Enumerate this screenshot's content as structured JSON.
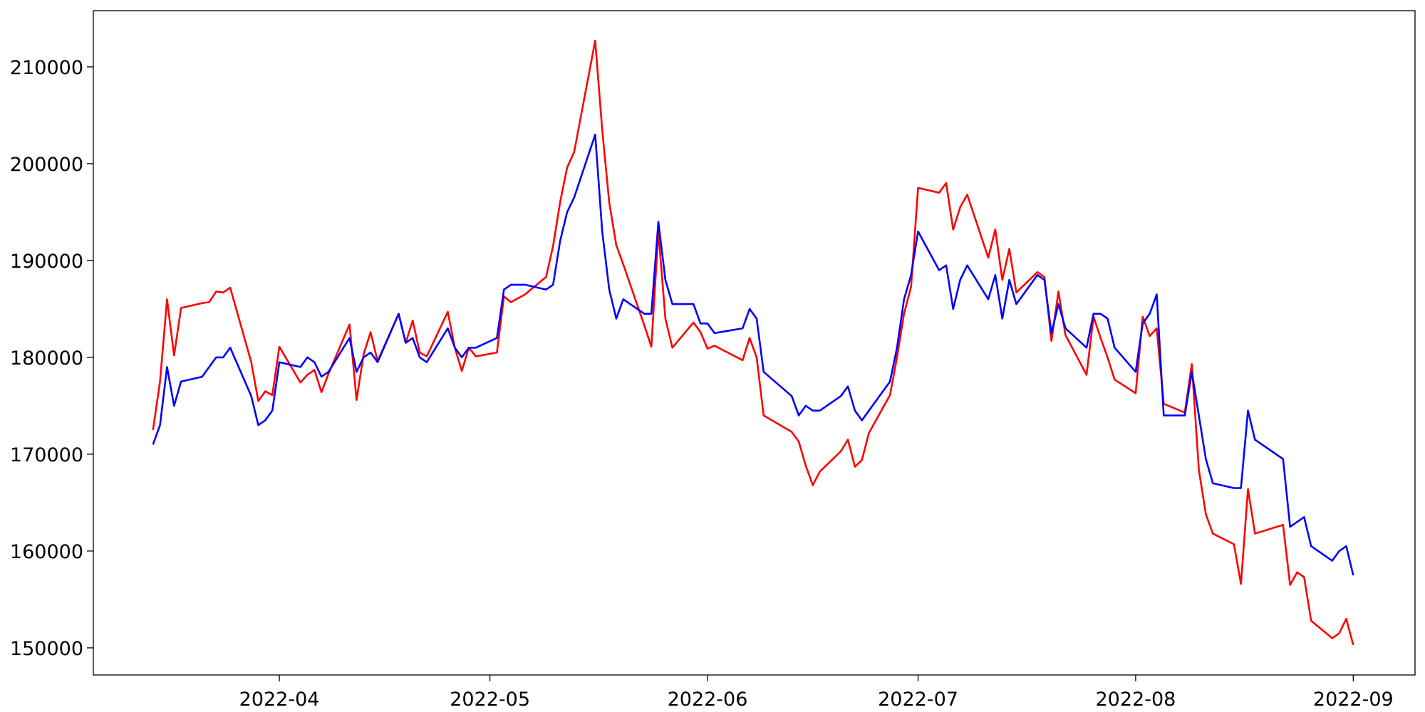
{
  "chart_data": {
    "type": "line",
    "x": [
      19065,
      19066,
      19067,
      19068,
      19069,
      19072,
      19073,
      19074,
      19075,
      19076,
      19079,
      19080,
      19081,
      19082,
      19083,
      19086,
      19087,
      19088,
      19089,
      19090,
      19093,
      19094,
      19095,
      19096,
      19097,
      19100,
      19101,
      19102,
      19103,
      19104,
      19107,
      19108,
      19109,
      19110,
      19111,
      19114,
      19115,
      19116,
      19118,
      19121,
      19122,
      19123,
      19124,
      19125,
      19128,
      19129,
      19130,
      19131,
      19132,
      19135,
      19136,
      19137,
      19138,
      19139,
      19142,
      19143,
      19144,
      19145,
      19149,
      19150,
      19151,
      19152,
      19156,
      19157,
      19158,
      19159,
      19160,
      19163,
      19164,
      19165,
      19166,
      19167,
      19170,
      19171,
      19172,
      19173,
      19174,
      19177,
      19178,
      19179,
      19180,
      19181,
      19184,
      19185,
      19186,
      19187,
      19188,
      19191,
      19192,
      19193,
      19194,
      19195,
      19198,
      19199,
      19200,
      19201,
      19202,
      19205,
      19206,
      19207,
      19208,
      19209,
      19212,
      19213,
      19214,
      19215,
      19216,
      19219,
      19220,
      19221,
      19222,
      19226,
      19227,
      19228,
      19229,
      19230,
      19233,
      19234,
      19235,
      19236
    ],
    "series": [
      {
        "color": "#ff0000",
        "values": [
          172500,
          177500,
          186000,
          180200,
          185100,
          185600,
          185700,
          186800,
          186700,
          187200,
          179500,
          175500,
          176500,
          176100,
          181100,
          177400,
          178200,
          178700,
          176400,
          178300,
          183400,
          175600,
          180300,
          182600,
          179600,
          184500,
          181500,
          183800,
          180500,
          180100,
          184700,
          181000,
          178600,
          181000,
          180100,
          180500,
          186300,
          185700,
          186500,
          188300,
          191500,
          196000,
          199600,
          201200,
          212700,
          203500,
          196000,
          191600,
          189600,
          183300,
          181100,
          193000,
          184000,
          181000,
          183600,
          182600,
          180900,
          181200,
          179700,
          182000,
          180000,
          174000,
          172300,
          171300,
          168800,
          166800,
          168200,
          170300,
          171500,
          168700,
          169400,
          172200,
          176100,
          180000,
          184500,
          187300,
          197500,
          197000,
          198000,
          193200,
          195500,
          196800,
          190300,
          193200,
          188000,
          191200,
          186700,
          188800,
          188300,
          181700,
          186800,
          182300,
          178200,
          184200,
          182000,
          180000,
          177700,
          176300,
          184200,
          182200,
          183000,
          175200,
          174300,
          179300,
          168400,
          163800,
          161800,
          160700,
          156600,
          166400,
          161800,
          162700,
          156500,
          157800,
          157300,
          152800,
          151000,
          151500,
          153000,
          150300
        ]
      },
      {
        "color": "#0000ff",
        "values": [
          171000,
          173000,
          179000,
          175000,
          177500,
          178000,
          179000,
          180000,
          180000,
          181000,
          176000,
          173000,
          173500,
          174500,
          179500,
          179000,
          180000,
          179500,
          178000,
          178500,
          182000,
          178500,
          180000,
          180500,
          179500,
          184500,
          181500,
          182000,
          180000,
          179500,
          183000,
          181000,
          180000,
          181000,
          181000,
          182000,
          187000,
          187500,
          187500,
          187000,
          187500,
          192000,
          195000,
          196500,
          203000,
          193000,
          187000,
          184000,
          186000,
          184500,
          184500,
          194000,
          188000,
          185500,
          185500,
          183500,
          183500,
          182500,
          183000,
          185000,
          184000,
          178500,
          176000,
          174000,
          175000,
          174500,
          174500,
          176000,
          177000,
          174500,
          173500,
          174500,
          177500,
          181000,
          186000,
          188500,
          193000,
          189000,
          189500,
          185000,
          188000,
          189500,
          186000,
          188500,
          184000,
          188000,
          185500,
          188500,
          188000,
          182500,
          185500,
          183000,
          181000,
          184500,
          184500,
          184000,
          181000,
          178500,
          183500,
          184500,
          186500,
          174000,
          174000,
          178500,
          174000,
          169500,
          167000,
          166500,
          166500,
          174500,
          171500,
          169500,
          162500,
          163000,
          163500,
          160500,
          159000,
          160000,
          160500,
          157500
        ]
      }
    ],
    "xlim": [
      19056.5,
      19244.8
    ],
    "xticks": [
      {
        "value": 19083,
        "label": "2022-04"
      },
      {
        "value": 19113,
        "label": "2022-05"
      },
      {
        "value": 19144,
        "label": "2022-06"
      },
      {
        "value": 19174,
        "label": "2022-07"
      },
      {
        "value": 19205,
        "label": "2022-08"
      },
      {
        "value": 19236,
        "label": "2022-09"
      }
    ],
    "ylim": [
      147200,
      215800
    ],
    "yticks": [
      150000,
      160000,
      170000,
      180000,
      190000,
      200000,
      210000
    ],
    "grid": false
  }
}
